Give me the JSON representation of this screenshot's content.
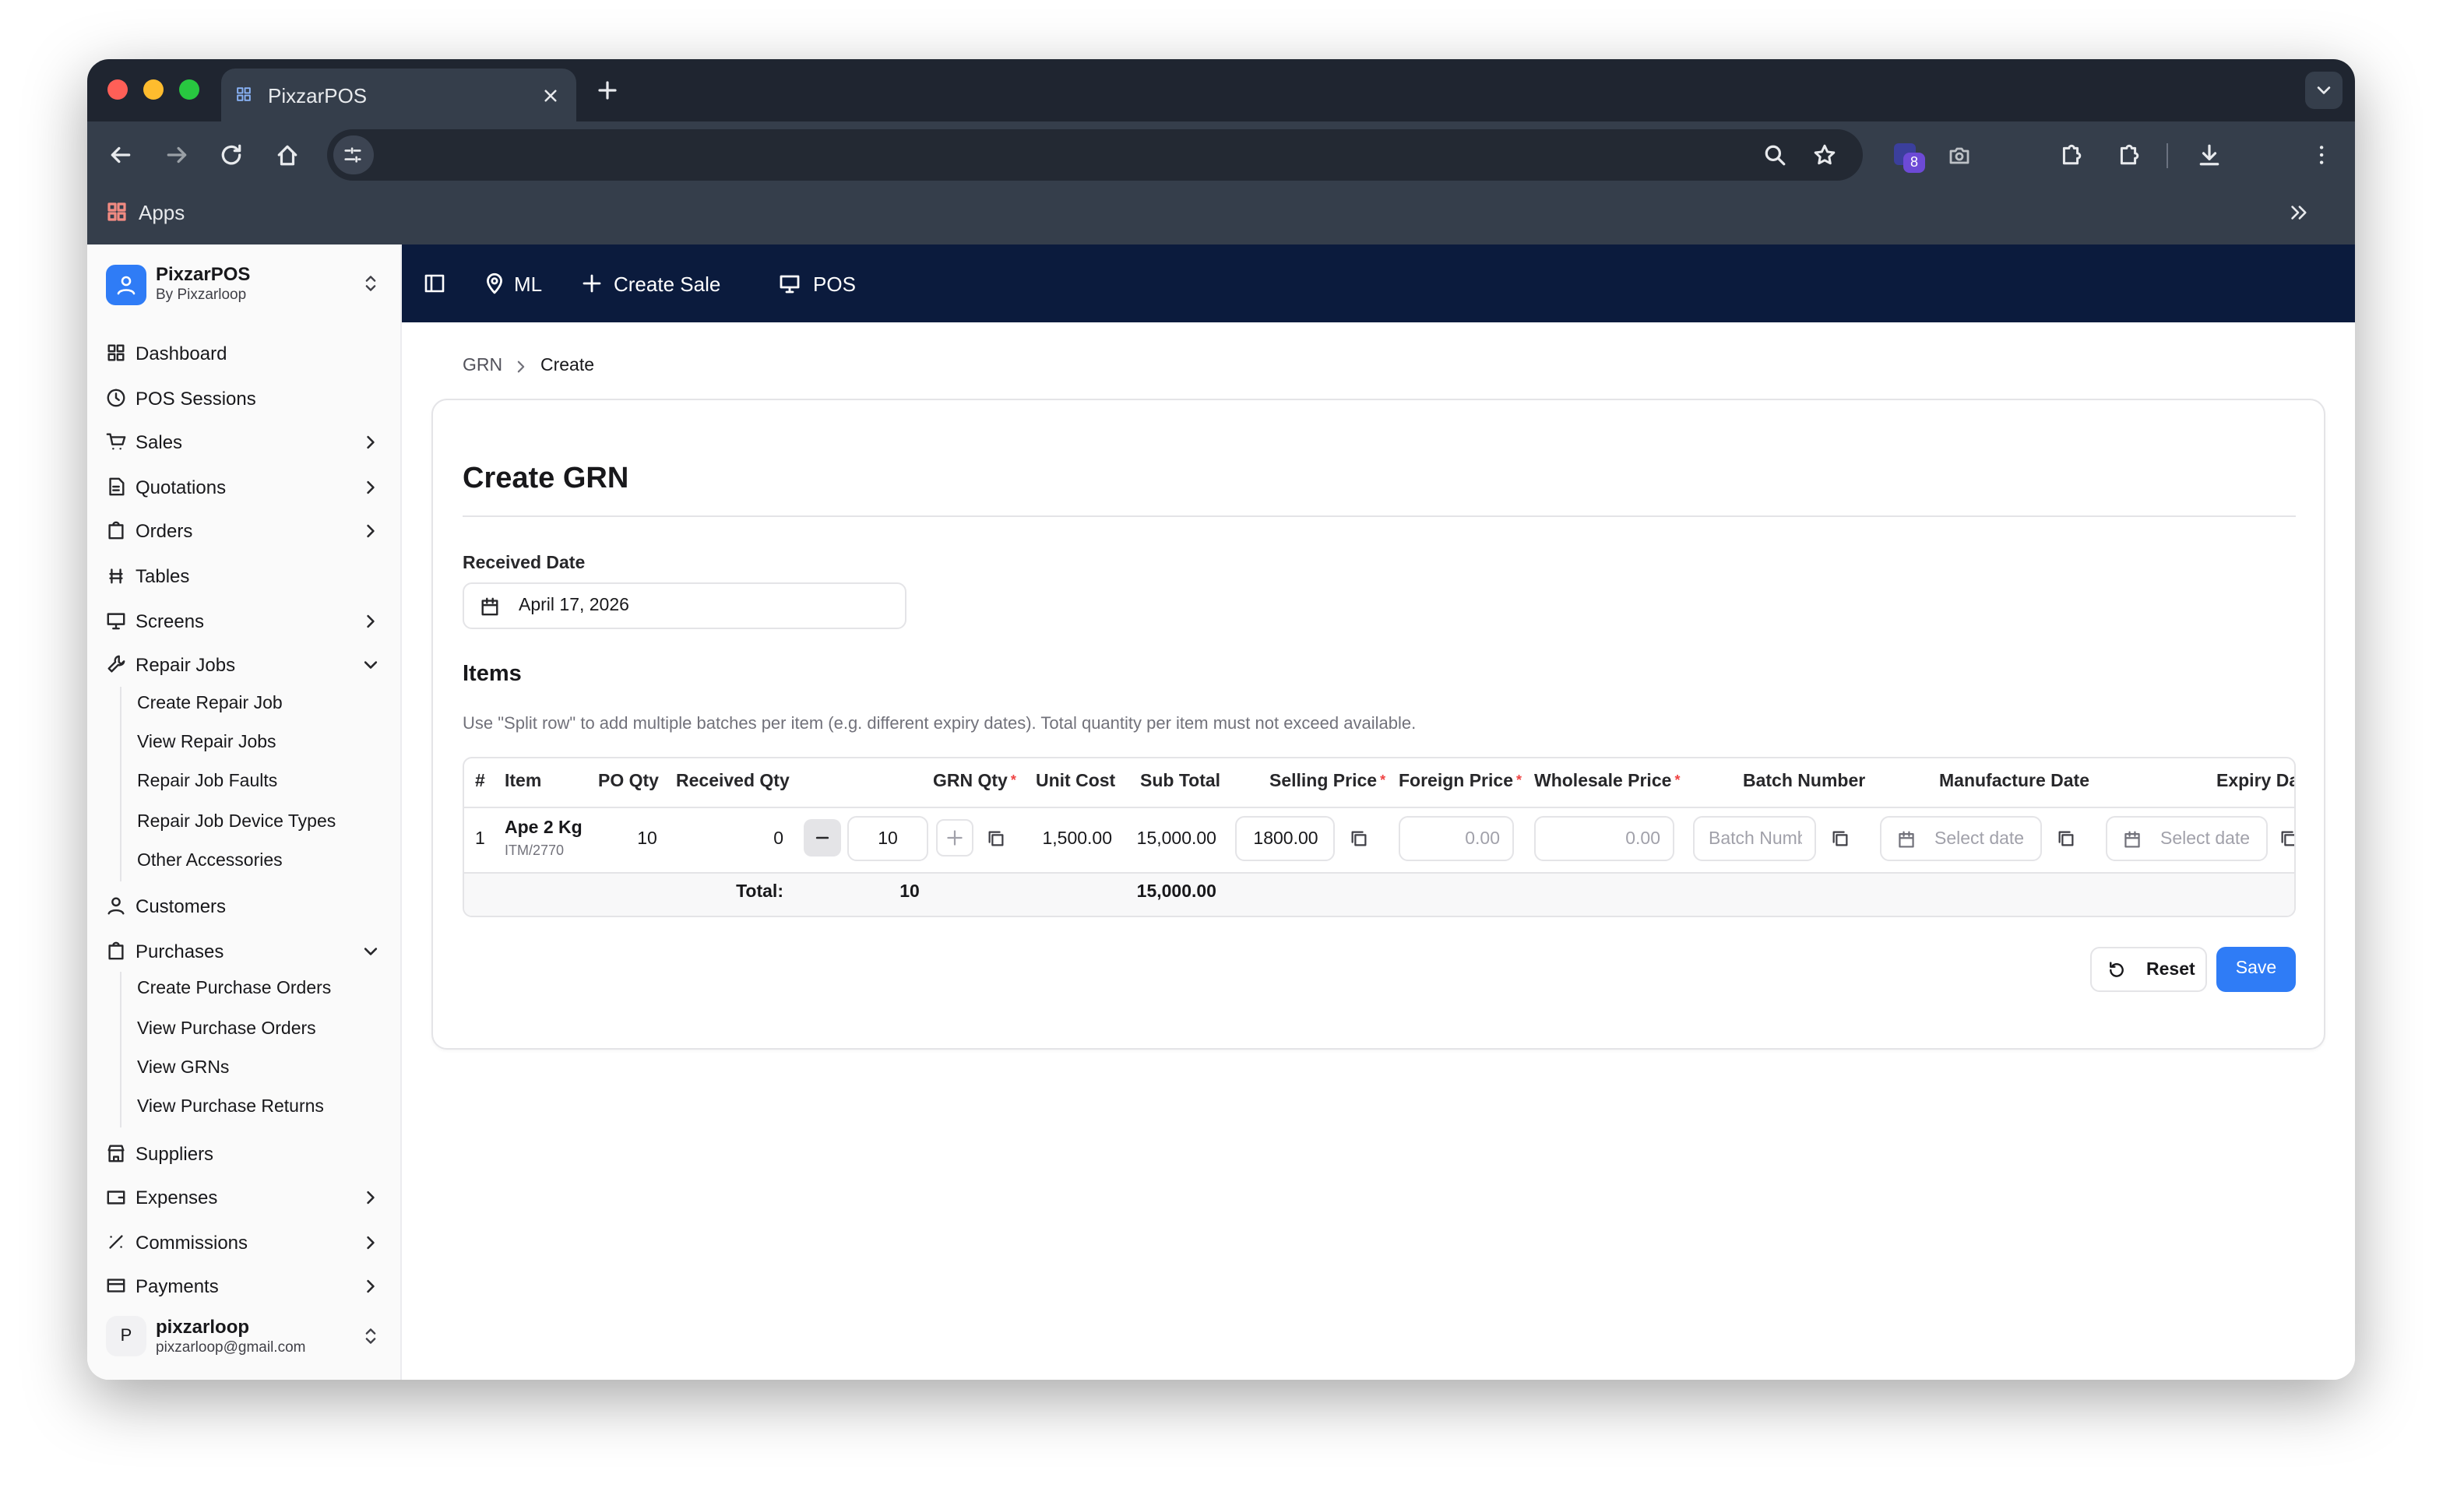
{
  "browser": {
    "tab_title": "PixzarPOS",
    "bookmark": "Apps",
    "extension_badge": "8"
  },
  "sidebar": {
    "brand": {
      "name": "PixzarPOS",
      "subtitle": "By Pixzarloop"
    },
    "items": [
      {
        "label": "Dashboard"
      },
      {
        "label": "POS Sessions"
      },
      {
        "label": "Sales",
        "expand": "right"
      },
      {
        "label": "Quotations",
        "expand": "right"
      },
      {
        "label": "Orders",
        "expand": "right"
      },
      {
        "label": "Tables"
      },
      {
        "label": "Screens",
        "expand": "right"
      },
      {
        "label": "Repair Jobs",
        "expand": "down",
        "children": [
          "Create Repair Job",
          "View Repair Jobs",
          "Repair Job Faults",
          "Repair Job Device Types",
          "Other Accessories"
        ]
      },
      {
        "label": "Customers"
      },
      {
        "label": "Purchases",
        "expand": "down",
        "children": [
          "Create Purchase Orders",
          "View Purchase Orders",
          "View GRNs",
          "View Purchase Returns"
        ]
      },
      {
        "label": "Suppliers"
      },
      {
        "label": "Expenses",
        "expand": "right"
      },
      {
        "label": "Commissions",
        "expand": "right"
      },
      {
        "label": "Payments",
        "expand": "right"
      }
    ],
    "user": {
      "initial": "P",
      "name": "pixzarloop",
      "email": "pixzarloop@gmail.com"
    }
  },
  "topnav": {
    "location": "ML",
    "links": [
      "Create Sale",
      "POS"
    ]
  },
  "breadcrumb": [
    "GRN",
    "Create"
  ],
  "form": {
    "title": "Create GRN",
    "received_date_label": "Received Date",
    "received_date": "April 17, 2026",
    "items_heading": "Items",
    "hint": "Use \"Split row\" to add multiple batches per item (e.g. different expiry dates). Total quantity per item must not exceed available.",
    "table": {
      "required_mark": "*",
      "headers": [
        {
          "label": "#"
        },
        {
          "label": "Item"
        },
        {
          "label": "PO Qty"
        },
        {
          "label": "Received Qty"
        },
        {
          "label": "GRN Qty",
          "required": true
        },
        {
          "label": "Unit Cost"
        },
        {
          "label": "Sub Total"
        },
        {
          "label": "Selling Price",
          "required": true
        },
        {
          "label": "Foreign Price",
          "required": true
        },
        {
          "label": "Wholesale Price",
          "required": true
        },
        {
          "label": "Batch Number"
        },
        {
          "label": "Manufacture Date"
        },
        {
          "label": "Expiry Date"
        }
      ],
      "rows": [
        {
          "index": "1",
          "item": "Ape 2 Kg",
          "code": "ITM/2770",
          "po_qty": "10",
          "received_qty": "0",
          "grn_qty": "10",
          "unit_cost": "1,500.00",
          "sub_total": "15,000.00",
          "selling_price": "1800.00",
          "foreign_price": "0.00",
          "wholesale_price": "0.00",
          "batch_number": "Batch Number",
          "manufacture_date": "Select date",
          "expiry_date": "Select date"
        }
      ],
      "total": {
        "label": "Total:",
        "grn_qty": "10",
        "sub_total": "15,000.00"
      }
    },
    "buttons": [
      "Reset",
      "Save"
    ]
  }
}
